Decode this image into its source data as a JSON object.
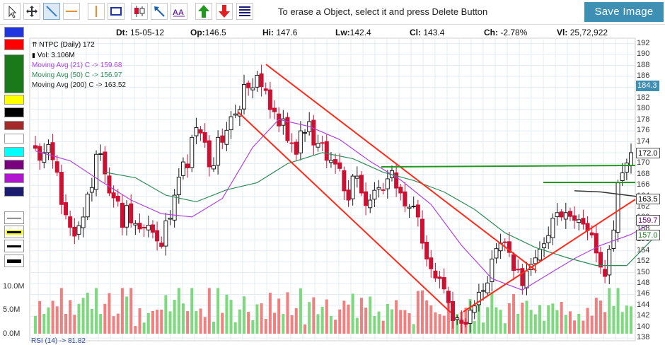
{
  "toolbar": {
    "hint": "To erase a Object, select it and press Delete Button",
    "save_label": "Save Image",
    "tools": [
      "pointer-tool-icon",
      "move-tool-icon",
      "trend-line-tool-icon",
      "horizontal-line-tool-icon",
      "vertical-line-tool-icon",
      "rectangle-tool-icon",
      "candle-type-icon",
      "arrow-tool-icon",
      "text-tool-icon",
      "up-arrow-tool-icon",
      "down-arrow-tool-icon",
      "fibonacci-tool-icon"
    ]
  },
  "palette": {
    "colors": [
      "#1f35e0",
      "#ff0000",
      "#1a7a1a",
      "#ffff00",
      "#000000",
      "#a52a2a",
      "#ffffff",
      "#00ffff",
      "#7b0080",
      "#b016d0",
      "#1c1c6e"
    ],
    "line_widths": [
      "thin",
      "thick-yellow",
      "medium",
      "thick"
    ]
  },
  "info": {
    "date_label": "Dt:",
    "date": "15-05-12",
    "open_label": "Op:",
    "open": "146.5",
    "high_label": "Hi:",
    "high": "147.6",
    "low_label": "Lw:",
    "low": "142.4",
    "close_label": "Cl:",
    "close": "143.4",
    "change_label": "Ch:",
    "change": "-2.78%",
    "volume_label": "Vl:",
    "volume": "25,72,922"
  },
  "legend": {
    "symbol": "NTPC (Daily) 172",
    "vol": "Vol: 3.106M",
    "ma21": "Moving Avg (21) C -> 159.68",
    "ma50": "Moving Avg (50) C -> 156.97",
    "ma200": "Moving Avg (200) C -> 163.52",
    "symbol_icon": "candle-icon",
    "vol_icon": "volume-bars-icon"
  },
  "chart_data": {
    "type": "candlestick",
    "y_ticks": [
      "192",
      "190",
      "188",
      "186",
      "184",
      "182",
      "180",
      "178",
      "176",
      "174",
      "172",
      "170",
      "168",
      "166",
      "164",
      "162",
      "160",
      "158",
      "156",
      "154",
      "152",
      "150",
      "148",
      "146",
      "144",
      "142",
      "140",
      "138"
    ],
    "ylim": [
      137.5,
      193
    ],
    "volume_ticks": [
      "10.0M",
      "5.0M",
      "0.0M"
    ],
    "volume_max": 10.0,
    "price_tags": [
      {
        "label": "184.3",
        "value": 184.3,
        "fill": "#3d8fb4",
        "color": "#ffffff"
      },
      {
        "label": "172.0",
        "value": 172.0,
        "fill": "#ffffff",
        "color": "#000000"
      },
      {
        "label": "163.5",
        "value": 163.5,
        "fill": "#ffffff",
        "color": "#000000"
      },
      {
        "label": "159.7",
        "value": 159.7,
        "fill": "#ffffff",
        "color": "#7b0080"
      },
      {
        "label": "157.0",
        "value": 157.0,
        "fill": "#ffffff",
        "color": "#1a7a1a"
      }
    ],
    "colors": {
      "up": "#1a1a1a",
      "down": "#cc1133",
      "ma21": "#b040e0",
      "ma50": "#2e8b57",
      "ma200": "#333333",
      "vol_up": "#7ed87e",
      "vol_down": "#f08080"
    },
    "closes": [
      172.8,
      170.6,
      172.0,
      173.5,
      170.7,
      168.4,
      162.5,
      160.6,
      158.3,
      156.7,
      158.6,
      160.2,
      164.4,
      165.6,
      171.7,
      171.8,
      168.1,
      164.6,
      163.7,
      163.1,
      158.3,
      162.3,
      159.1,
      159.0,
      158.0,
      158.2,
      158.7,
      157.4,
      155.8,
      154.8,
      159.5,
      160.0,
      164.2,
      167.5,
      170.3,
      169.2,
      174.8,
      176.6,
      175.6,
      173.9,
      169.4,
      169.6,
      174.8,
      173.9,
      176.1,
      178.6,
      179.1,
      179.9,
      184.5,
      183.9,
      183.9,
      186.2,
      184.1,
      183.4,
      179.9,
      179.5,
      176.9,
      178.2,
      174.2,
      173.8,
      171.7,
      176.0,
      175.7,
      177.7,
      173.4,
      173.7,
      173.8,
      170.6,
      170.6,
      169.9,
      169.1,
      165.0,
      163.3,
      167.7,
      167.7,
      164.6,
      162.3,
      163.3,
      165.1,
      165.6,
      165.2,
      167.2,
      168.7,
      165.5,
      164.6,
      162.2,
      162.0,
      162.2,
      160.2,
      155.4,
      152.5,
      150.7,
      149.0,
      148.9,
      147.0,
      144.5,
      141.2,
      141.7,
      140.7,
      140.5,
      143.1,
      143.9,
      146.4,
      146.7,
      148.1,
      152.5,
      154.4,
      155.4,
      155.5,
      153.7,
      150.4,
      150.6,
      147.6,
      150.3,
      151.5,
      152.7,
      154.3,
      155.3,
      156.8,
      160.0,
      161.0,
      160.2,
      161.0,
      160.3,
      159.6,
      159.7,
      158.9,
      157.7,
      156.9,
      153.6,
      151.0,
      149.3,
      154.3,
      157.8,
      166.6,
      168.3,
      170.1,
      172.0
    ],
    "moving_averages": [
      {
        "name": "Moving Avg (21)",
        "points": [
          [
            0,
            172.3
          ],
          [
            8,
            170.5
          ],
          [
            15,
            166.8
          ],
          [
            22,
            163.3
          ],
          [
            29,
            160.8
          ],
          [
            36,
            160.2
          ],
          [
            43,
            163.6
          ],
          [
            50,
            173.0
          ],
          [
            56,
            178.1
          ],
          [
            63,
            176.8
          ],
          [
            70,
            174.4
          ],
          [
            77,
            170.4
          ],
          [
            84,
            167.0
          ],
          [
            91,
            162.5
          ],
          [
            98,
            155.0
          ],
          [
            105,
            148.9
          ],
          [
            112,
            146.8
          ],
          [
            118,
            149.7
          ],
          [
            124,
            152.6
          ],
          [
            130,
            155.0
          ],
          [
            137,
            157.0
          ],
          [
            143,
            159.7
          ]
        ]
      },
      {
        "name": "Moving Avg (50)",
        "points": [
          [
            16,
            168.4
          ],
          [
            23,
            167.4
          ],
          [
            30,
            164.2
          ],
          [
            37,
            163.0
          ],
          [
            44,
            165.2
          ],
          [
            51,
            166.5
          ],
          [
            58,
            170.0
          ],
          [
            66,
            172.0
          ],
          [
            73,
            170.9
          ],
          [
            80,
            168.4
          ],
          [
            87,
            166.9
          ],
          [
            94,
            164.8
          ],
          [
            101,
            161.6
          ],
          [
            108,
            157.3
          ],
          [
            115,
            154.6
          ],
          [
            122,
            152.8
          ],
          [
            129,
            151.3
          ],
          [
            136,
            151.3
          ],
          [
            143,
            157.0
          ]
        ]
      },
      {
        "name": "Moving Avg (200)",
        "points": [
          [
            124,
            165.0
          ],
          [
            130,
            164.8
          ],
          [
            136,
            164.2
          ],
          [
            143,
            163.5
          ]
        ]
      }
    ],
    "trend_lines": [
      {
        "color": "#ff2a1a",
        "points": [
          [
            376,
            91
          ],
          [
            758,
            383
          ]
        ]
      },
      {
        "color": "#ff2a1a",
        "points": [
          [
            336,
            158
          ],
          [
            637,
            442
          ]
        ]
      },
      {
        "color": "#ff2a1a",
        "points": [
          [
            655,
            441
          ],
          [
            898,
            282
          ]
        ]
      },
      {
        "color": "#1f9a1f",
        "points": [
          [
            539,
            236
          ],
          [
            898,
            234
          ]
        ]
      },
      {
        "color": "#1f9a1f",
        "points": [
          [
            768,
            258
          ],
          [
            898,
            258
          ]
        ]
      }
    ],
    "rsi_label": "RSI (14) -> 81.82"
  }
}
